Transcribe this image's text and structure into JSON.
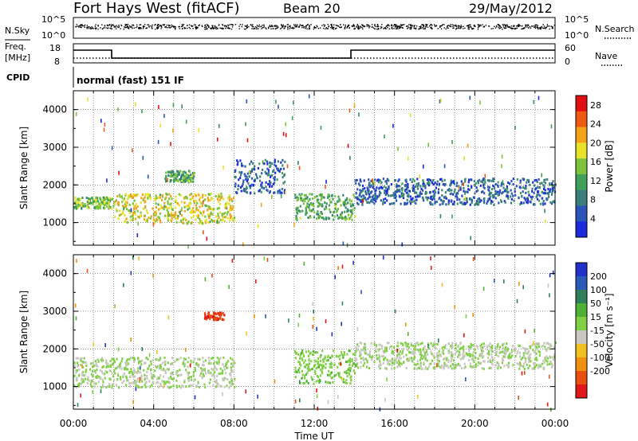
{
  "header": {
    "title": "Fort Hays West (fitACF)",
    "beam": "Beam 20",
    "date": "29/May/2012"
  },
  "noise_panel": {
    "left_label": "N.Sky",
    "right_label": "N.Search",
    "left_ticks": [
      "10^5",
      "10^0"
    ],
    "right_ticks": [
      "10^5",
      "10^0"
    ]
  },
  "freq_panel": {
    "left_label_1": "Freq.",
    "left_label_2": "[MHz]",
    "left_ticks": [
      "18",
      "8"
    ],
    "right_label": "Nave",
    "right_ticks": [
      "60",
      "0"
    ]
  },
  "cpid": {
    "label": "CPID",
    "mode": "normal (fast) 151 IF"
  },
  "colors": {
    "power_scale": [
      "#1b2bdc",
      "#2b55b8",
      "#3a7f7a",
      "#3fa05a",
      "#7cc43c",
      "#e7e22a",
      "#f4a21a",
      "#ee5a14",
      "#e01010"
    ],
    "velocity_scale": [
      "#2030c8",
      "#2a5ab8",
      "#2f7f5a",
      "#4fb036",
      "#7fd044",
      "#c8c8c0",
      "#f0c020",
      "#f09010",
      "#e85010",
      "#e01818"
    ]
  },
  "chart_data": [
    {
      "type": "heatmap",
      "panel": "power",
      "xlabel": "",
      "ylabel": "Slant Range [km]",
      "x_ticks": [
        "00:00",
        "04:00",
        "08:00",
        "12:00",
        "16:00",
        "20:00",
        "00:00"
      ],
      "y_ticks": [
        1000,
        2000,
        3000,
        4000
      ],
      "ylim": [
        400,
        4500
      ],
      "colorbar": {
        "label": "Power [dB]",
        "ticks": [
          4,
          8,
          12,
          16,
          20,
          24,
          28
        ],
        "range": [
          0,
          30
        ]
      },
      "echo_bands": [
        {
          "from_hour": 0.0,
          "to_hour": 2.0,
          "range_km": [
            1400,
            1700
          ],
          "power_db": 14
        },
        {
          "from_hour": 2.0,
          "to_hour": 8.0,
          "range_km": [
            1000,
            1800
          ],
          "power_db": 18
        },
        {
          "from_hour": 4.5,
          "to_hour": 6.0,
          "range_km": [
            2100,
            2400
          ],
          "power_db": 12
        },
        {
          "from_hour": 8.0,
          "to_hour": 10.5,
          "range_km": [
            1800,
            2700
          ],
          "power_db": 6
        },
        {
          "from_hour": 11.0,
          "to_hour": 14.0,
          "range_km": [
            1100,
            1800
          ],
          "power_db": 12
        },
        {
          "from_hour": 14.0,
          "to_hour": 24.0,
          "range_km": [
            1500,
            2200
          ],
          "power_db": 6
        }
      ]
    },
    {
      "type": "heatmap",
      "panel": "velocity",
      "xlabel": "Time UT",
      "ylabel": "Slant Range [km]",
      "x_ticks": [
        "00:00",
        "04:00",
        "08:00",
        "12:00",
        "16:00",
        "20:00",
        "00:00"
      ],
      "y_ticks": [
        1000,
        2000,
        3000,
        4000
      ],
      "ylim": [
        400,
        4500
      ],
      "colorbar": {
        "label": "Velocity [m s⁻¹]",
        "ticks": [
          200,
          100,
          50,
          15,
          -15,
          -50,
          -100,
          -200
        ],
        "range": [
          -250,
          250
        ]
      },
      "echo_bands": [
        {
          "from_hour": 0.0,
          "to_hour": 8.0,
          "range_km": [
            1000,
            1800
          ],
          "velocity_ms": 0
        },
        {
          "from_hour": 6.5,
          "to_hour": 7.5,
          "range_km": [
            2800,
            3000
          ],
          "velocity_ms": -200
        },
        {
          "from_hour": 11.0,
          "to_hour": 14.0,
          "range_km": [
            1100,
            2000
          ],
          "velocity_ms": 40
        },
        {
          "from_hour": 14.0,
          "to_hour": 24.0,
          "range_km": [
            1500,
            2200
          ],
          "velocity_ms": 0
        }
      ]
    }
  ]
}
